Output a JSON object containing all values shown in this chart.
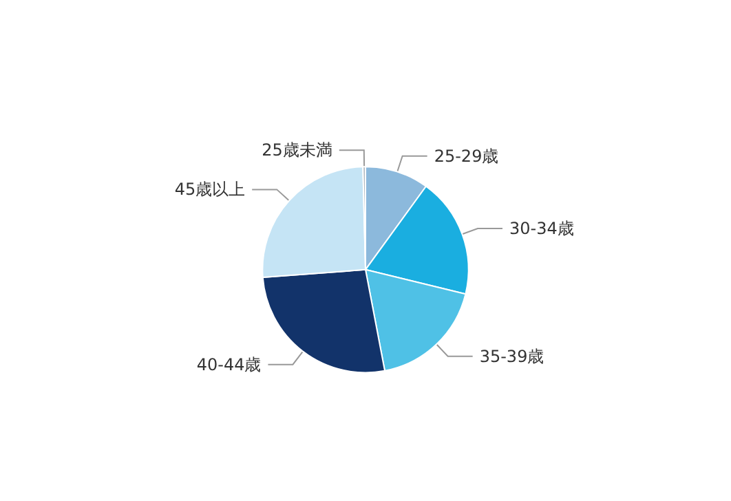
{
  "chart_data": {
    "type": "pie",
    "categories": [
      "25-29歳",
      "30-34歳",
      "35-39歳",
      "40-44歳",
      "45歳以上",
      "25歳未満"
    ],
    "values": [
      10,
      18.8,
      18.2,
      26.8,
      25.8,
      0.4
    ],
    "colors": [
      "#8cb9dc",
      "#1aaee0",
      "#4fc1e6",
      "#12336a",
      "#c5e4f5",
      "#b0b8c0"
    ],
    "legend": false
  }
}
